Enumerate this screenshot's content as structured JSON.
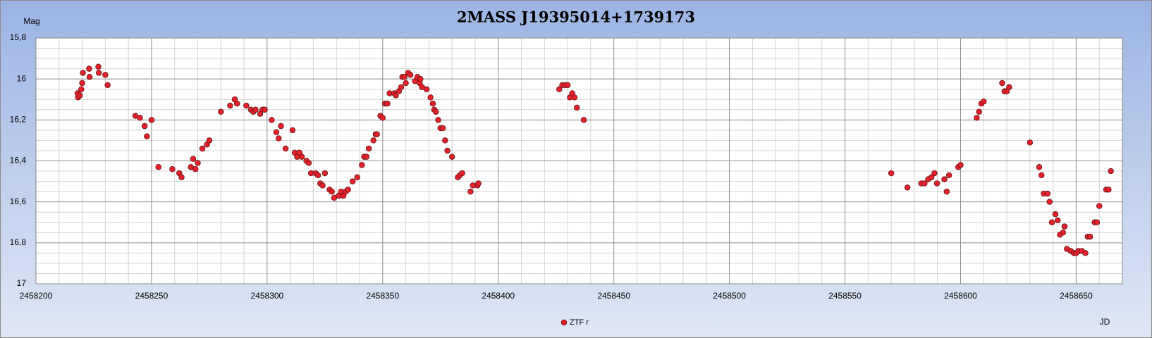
{
  "chart_data": {
    "type": "scatter",
    "title": "2MASS J19395014+1739173",
    "xlabel": "JD",
    "ylabel": "Mag",
    "xlim": [
      2458200,
      2458670
    ],
    "xticks": [
      2458200,
      2458250,
      2458300,
      2458350,
      2458400,
      2458450,
      2458500,
      2458550,
      2458600,
      2458650
    ],
    "ylim": [
      15.8,
      17
    ],
    "y_inverted": true,
    "yticks": [
      {
        "value": 15.8,
        "label": "15,8"
      },
      16,
      {
        "value": 16.2,
        "label": "16,2"
      },
      {
        "value": 16.4,
        "label": "16,4"
      },
      {
        "value": 16.6,
        "label": "16,6"
      },
      {
        "value": 16.8,
        "label": "16,8"
      },
      17
    ],
    "grid": true,
    "minor_grid": true,
    "legend": "bottom",
    "series": [
      {
        "name": "ZTF r",
        "color": "#e8202a",
        "x": [
          2458218.2,
          2458218,
          2458219,
          2458219.6,
          2458220,
          2458220.3,
          2458223,
          2458223.2,
          2458227,
          2458227.2,
          2458230,
          2458231,
          2458243,
          2458245,
          2458247,
          2458248,
          2458250,
          2458253,
          2458259,
          2458262,
          2458263,
          2458267,
          2458268,
          2458269,
          2458270,
          2458272,
          2458274,
          2458275,
          2458280,
          2458284,
          2458286,
          2458287,
          2458291,
          2458293,
          2458294,
          2458295,
          2458297,
          2458298,
          2458299,
          2458302,
          2458304,
          2458305,
          2458306,
          2458308,
          2458311,
          2458312,
          2458313,
          2458314,
          2458315,
          2458317,
          2458318,
          2458319,
          2458321,
          2458322,
          2458323,
          2458324,
          2458325,
          2458327,
          2458328,
          2458329,
          2458331,
          2458332,
          2458333,
          2458334,
          2458335,
          2458337,
          2458339,
          2458341,
          2458342,
          2458343,
          2458344,
          2458346,
          2458347,
          2458347.5,
          2458349,
          2458350,
          2458351,
          2458352,
          2458353,
          2458355,
          2458355.7,
          2458357,
          2458358,
          2458358.5,
          2458359.4,
          2458360,
          2458361,
          2458362,
          2458364,
          2458365,
          2458366,
          2458366.3,
          2458367,
          2458369,
          2458370.7,
          2458371.7,
          2458372.3,
          2458373,
          2458374,
          2458375,
          2458376,
          2458377,
          2458378,
          2458380,
          2458382.5,
          2458383.4,
          2458384.4,
          2458388,
          2458389,
          2458391,
          2458391.4,
          2458426.4,
          2458427.7,
          2458429,
          2458430,
          2458431,
          2458432,
          2458433,
          2458434,
          2458437,
          2458570,
          2458577,
          2458583,
          2458584.4,
          2458586,
          2458587.4,
          2458588.7,
          2458589.8,
          2458593,
          2458594,
          2458595,
          2458599,
          2458600,
          2458607,
          2458608,
          2458609,
          2458610,
          2458618,
          2458619,
          2458620,
          2458621,
          2458630,
          2458634,
          2458635,
          2458636,
          2458637.6,
          2458638.5,
          2458639.5,
          2458641,
          2458642,
          2458643,
          2458644.3,
          2458645,
          2458646,
          2458647.7,
          2458649,
          2458650,
          2458651,
          2458652.5,
          2458654,
          2458655,
          2458656,
          2458658,
          2458659,
          2458660,
          2458663,
          2458664,
          2458665
        ],
        "values": [
          16.09,
          16.07,
          16.08,
          16.05,
          16.02,
          15.97,
          15.95,
          15.99,
          15.94,
          15.97,
          15.98,
          16.03,
          16.18,
          16.19,
          16.23,
          16.28,
          16.2,
          16.43,
          16.44,
          16.46,
          16.48,
          16.43,
          16.39,
          16.44,
          16.41,
          16.34,
          16.32,
          16.3,
          16.16,
          16.13,
          16.1,
          16.12,
          16.13,
          16.15,
          16.16,
          16.15,
          16.17,
          16.15,
          16.15,
          16.2,
          16.26,
          16.29,
          16.23,
          16.34,
          16.25,
          16.36,
          16.38,
          16.36,
          16.38,
          16.4,
          16.41,
          16.46,
          16.46,
          16.47,
          16.51,
          16.52,
          16.46,
          16.54,
          16.55,
          16.58,
          16.57,
          16.55,
          16.57,
          16.55,
          16.54,
          16.5,
          16.48,
          16.42,
          16.38,
          16.38,
          16.34,
          16.3,
          16.27,
          16.27,
          16.18,
          16.19,
          16.12,
          16.12,
          16.07,
          16.07,
          16.08,
          16.06,
          16.04,
          15.99,
          15.99,
          16.02,
          15.97,
          15.98,
          16.01,
          15.99,
          16.02,
          16.0,
          16.04,
          16.05,
          16.09,
          16.12,
          16.15,
          16.16,
          16.2,
          16.24,
          16.24,
          16.3,
          16.35,
          16.38,
          16.48,
          16.47,
          16.46,
          16.55,
          16.52,
          16.52,
          16.51,
          16.05,
          16.03,
          16.03,
          16.03,
          16.09,
          16.07,
          16.09,
          16.14,
          16.2,
          16.46,
          16.53,
          16.51,
          16.51,
          16.49,
          16.48,
          16.46,
          16.51,
          16.49,
          16.55,
          16.47,
          16.43,
          16.42,
          16.19,
          16.16,
          16.12,
          16.11,
          16.02,
          16.06,
          16.06,
          16.04,
          16.31,
          16.43,
          16.47,
          16.56,
          16.56,
          16.6,
          16.7,
          16.66,
          16.69,
          16.76,
          16.75,
          16.72,
          16.83,
          16.84,
          16.85,
          16.85,
          16.84,
          16.84,
          16.85,
          16.77,
          16.77,
          16.7,
          16.7,
          16.62,
          16.54,
          16.54,
          16.45
        ]
      }
    ]
  }
}
